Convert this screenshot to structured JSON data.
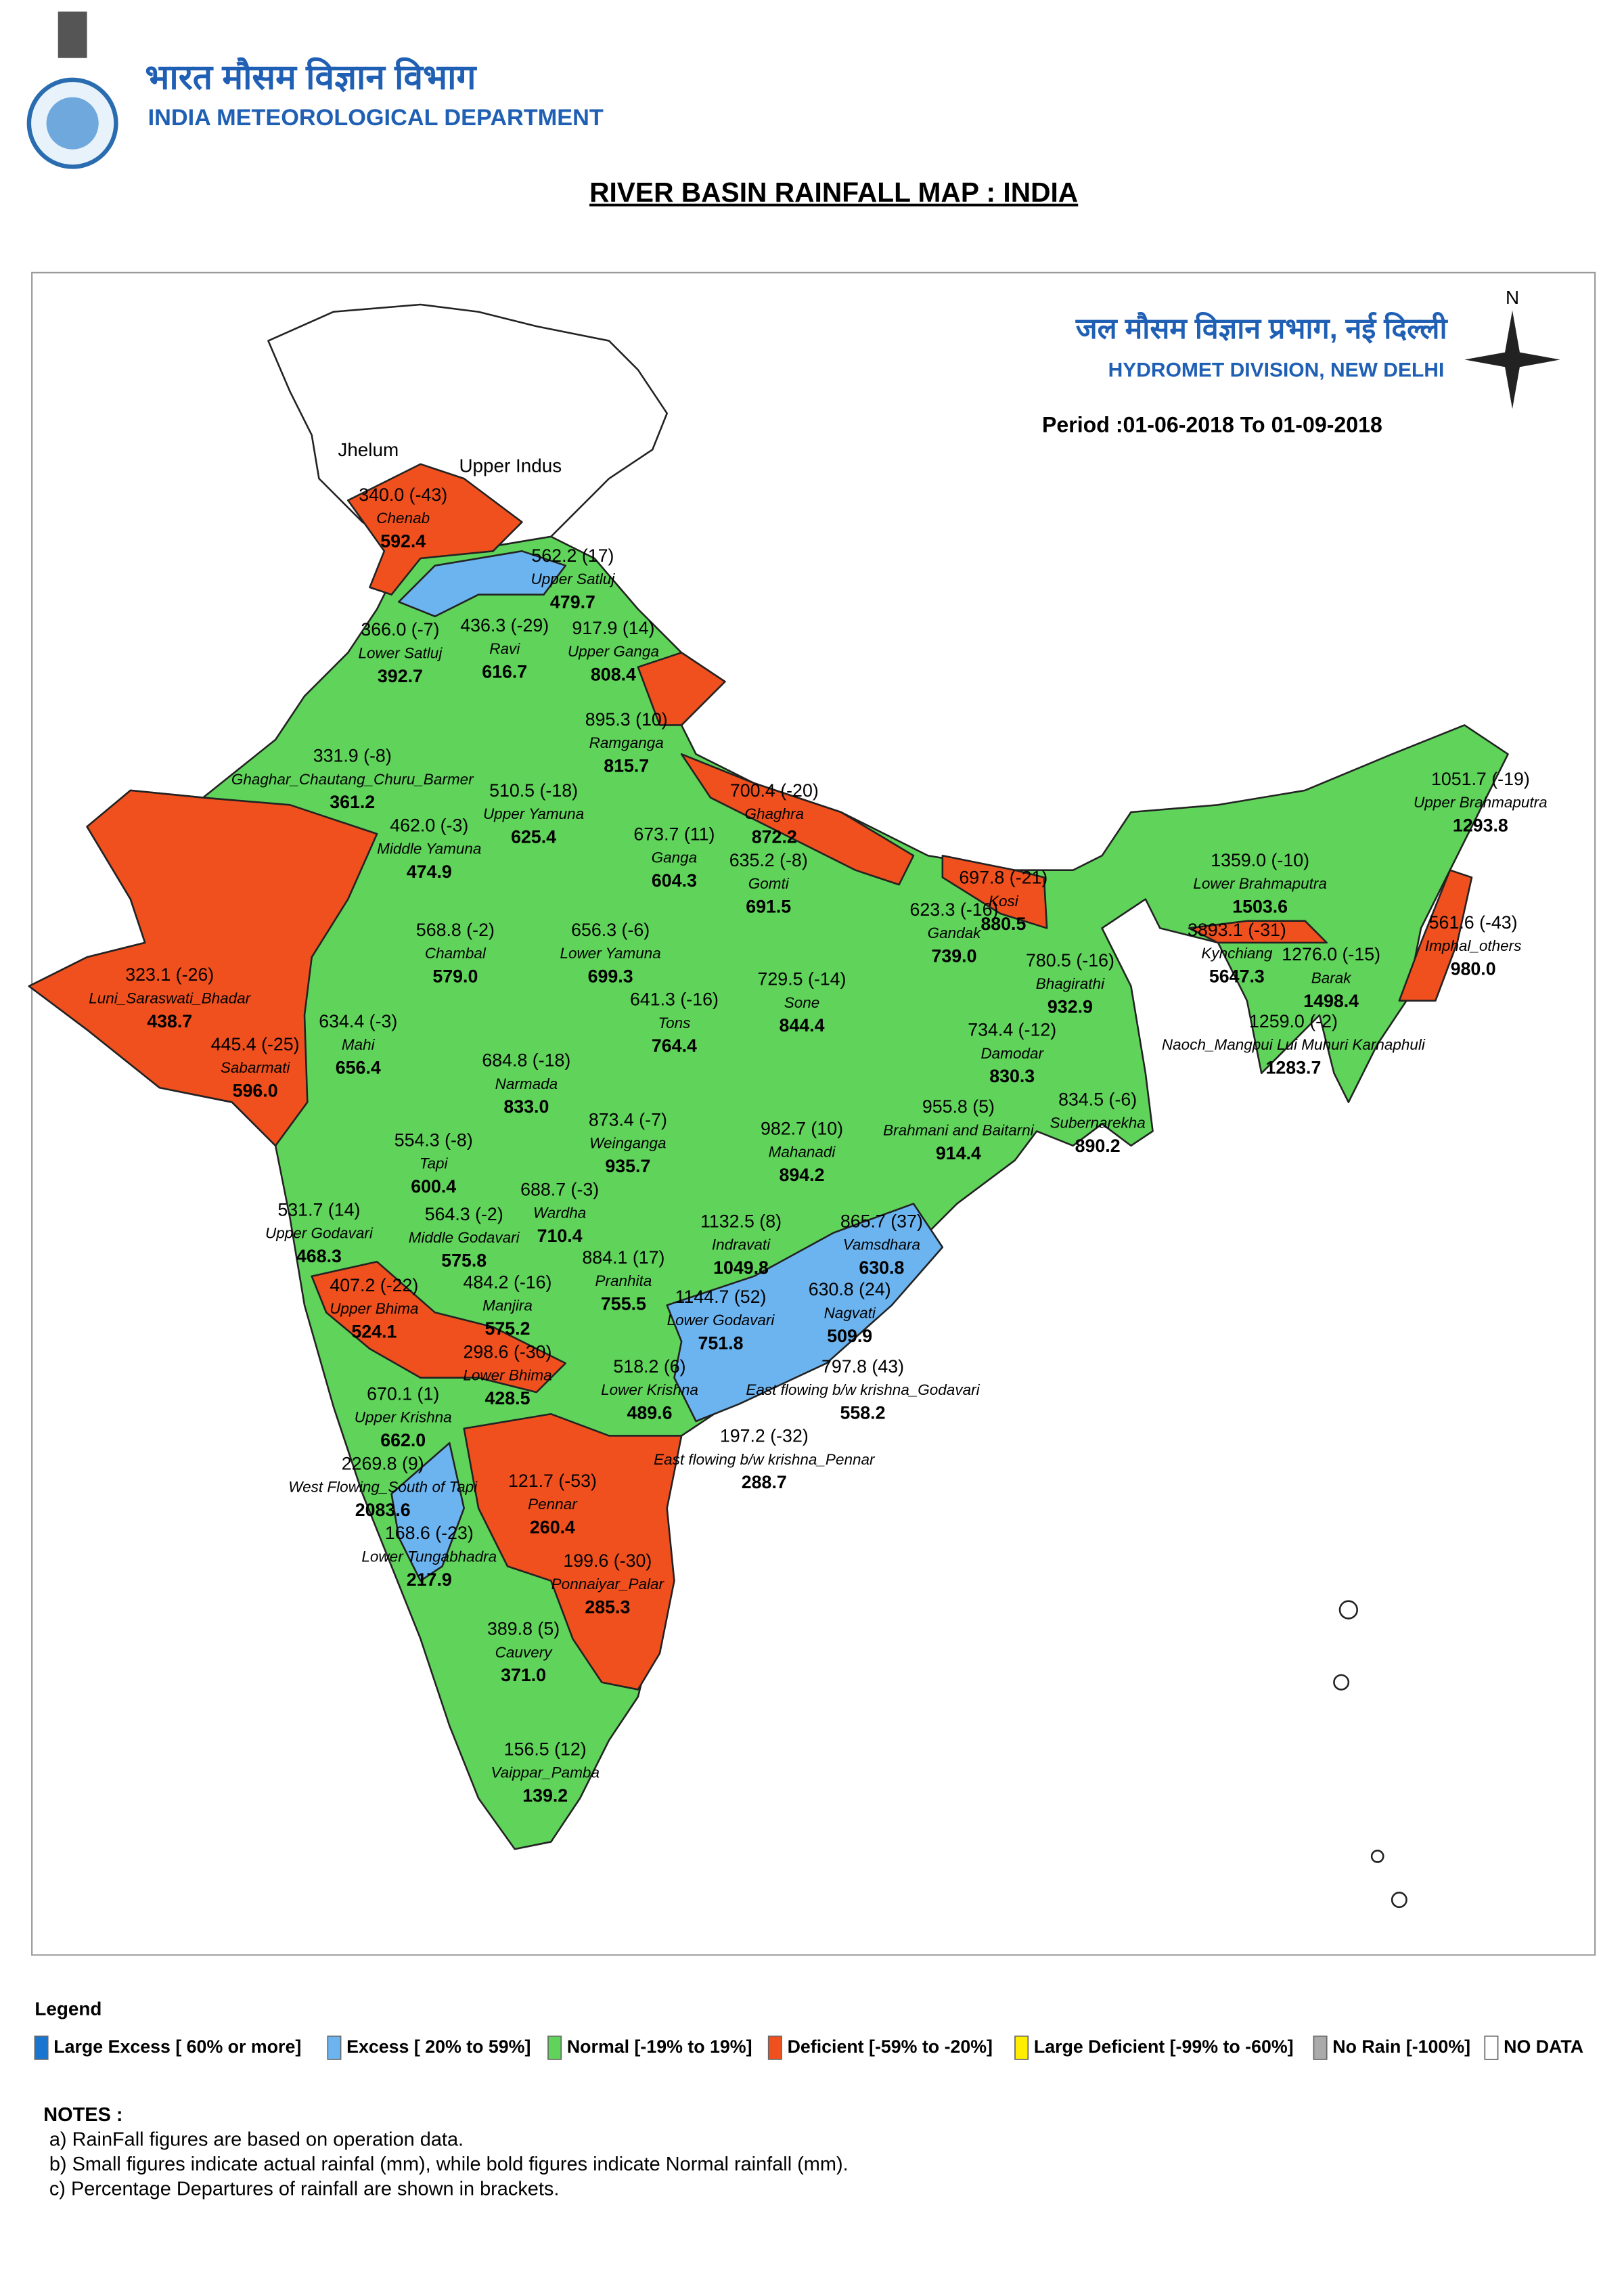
{
  "header": {
    "hindi_title": "भारत मौसम विज्ञान विभाग",
    "title": "INDIA METEOROLOGICAL DEPARTMENT"
  },
  "map": {
    "title": "RIVER BASIN RAINFALL MAP : INDIA",
    "division_hindi": "जल मौसम विज्ञान प्रभाग, नई दिल्ली",
    "division": "HYDROMET DIVISION, NEW DELHI",
    "period": "Period :01-06-2018 To 01-09-2018",
    "north": "N",
    "region_labels": [
      "Jhelum",
      "Upper Indus"
    ],
    "basins": [
      {
        "name": "Chenab",
        "actual": "340.0 (-43)",
        "normal": "592.4"
      },
      {
        "name": "Upper Satluj",
        "actual": "562.2 (17)",
        "normal": "479.7"
      },
      {
        "name": "Lower Satluj",
        "actual": "366.0 (-7)",
        "normal": "392.7"
      },
      {
        "name": "Ravi",
        "actual": "436.3 (-29)",
        "normal": "616.7"
      },
      {
        "name": "Upper Ganga",
        "actual": "917.9 (14)",
        "normal": "808.4"
      },
      {
        "name": "Ramganga",
        "actual": "895.3 (10)",
        "normal": "815.7"
      },
      {
        "name": "Ghaghar_Chautang_Churu_Barmer",
        "actual": "331.9 (-8)",
        "normal": "361.2"
      },
      {
        "name": "Upper Yamuna",
        "actual": "510.5 (-18)",
        "normal": "625.4"
      },
      {
        "name": "Middle Yamuna",
        "actual": "462.0 (-3)",
        "normal": "474.9"
      },
      {
        "name": "Ghaghra",
        "actual": "700.4 (-20)",
        "normal": "872.2"
      },
      {
        "name": "Ganga",
        "actual": "673.7 (11)",
        "normal": "604.3"
      },
      {
        "name": "Gomti",
        "actual": "635.2 (-8)",
        "normal": "691.5"
      },
      {
        "name": "Kosi",
        "actual": "697.8 (-21)",
        "normal": "880.5"
      },
      {
        "name": "Gandak",
        "actual": "623.3 (-16)",
        "normal": "739.0"
      },
      {
        "name": "Upper Brahmaputra",
        "actual": "1051.7 (-19)",
        "normal": "1293.8"
      },
      {
        "name": "Lower Brahmaputra",
        "actual": "1359.0 (-10)",
        "normal": "1503.6"
      },
      {
        "name": "Kynchiang",
        "actual": "3893.1 (-31)",
        "normal": "5647.3"
      },
      {
        "name": "Barak",
        "actual": "1276.0 (-15)",
        "normal": "1498.4"
      },
      {
        "name": "Imphal_others",
        "actual": "561.6 (-43)",
        "normal": "980.0"
      },
      {
        "name": "Naoch_Mangpui Lui Muhuri Karnaphuli",
        "actual": "1259.0 (-2)",
        "normal": "1283.7"
      },
      {
        "name": "Chambal",
        "actual": "568.8 (-2)",
        "normal": "579.0"
      },
      {
        "name": "Lower Yamuna",
        "actual": "656.3 (-6)",
        "normal": "699.3"
      },
      {
        "name": "Bhagirathi",
        "actual": "780.5 (-16)",
        "normal": "932.9"
      },
      {
        "name": "Luni_Saraswati_Bhadar",
        "actual": "323.1 (-26)",
        "normal": "438.7"
      },
      {
        "name": "Sone",
        "actual": "729.5 (-14)",
        "normal": "844.4"
      },
      {
        "name": "Tons",
        "actual": "641.3 (-16)",
        "normal": "764.4"
      },
      {
        "name": "Mahi",
        "actual": "634.4 (-3)",
        "normal": "656.4"
      },
      {
        "name": "Damodar",
        "actual": "734.4 (-12)",
        "normal": "830.3"
      },
      {
        "name": "Sabarmati",
        "actual": "445.4 (-25)",
        "normal": "596.0"
      },
      {
        "name": "Narmada",
        "actual": "684.8 (-18)",
        "normal": "833.0"
      },
      {
        "name": "Subernarekha",
        "actual": "834.5 (-6)",
        "normal": "890.2"
      },
      {
        "name": "Brahmani and Baitarni",
        "actual": "955.8 (5)",
        "normal": "914.4"
      },
      {
        "name": "Mahanadi",
        "actual": "982.7 (10)",
        "normal": "894.2"
      },
      {
        "name": "Weinganga",
        "actual": "873.4 (-7)",
        "normal": "935.7"
      },
      {
        "name": "Tapi",
        "actual": "554.3 (-8)",
        "normal": "600.4"
      },
      {
        "name": "Wardha",
        "actual": "688.7 (-3)",
        "normal": "710.4"
      },
      {
        "name": "Middle Godavari",
        "actual": "564.3 (-2)",
        "normal": "575.8"
      },
      {
        "name": "Upper Godavari",
        "actual": "531.7 (14)",
        "normal": "468.3"
      },
      {
        "name": "Indravati",
        "actual": "1132.5 (8)",
        "normal": "1049.8"
      },
      {
        "name": "Vamsdhara",
        "actual": "865.7 (37)",
        "normal": "630.8"
      },
      {
        "name": "Pranhita",
        "actual": "884.1 (17)",
        "normal": "755.5"
      },
      {
        "name": "Manjira",
        "actual": "484.2 (-16)",
        "normal": "575.2"
      },
      {
        "name": "Upper Bhima",
        "actual": "407.2 (-22)",
        "normal": "524.1"
      },
      {
        "name": "Lower Godavari",
        "actual": "1144.7 (52)",
        "normal": "751.8"
      },
      {
        "name": "Nagvati",
        "actual": "630.8 (24)",
        "normal": "509.9"
      },
      {
        "name": "Lower Bhima",
        "actual": "298.6 (-30)",
        "normal": "428.5"
      },
      {
        "name": "Lower Krishna",
        "actual": "518.2 (6)",
        "normal": "489.6"
      },
      {
        "name": "East flowing b/w krishna_Godavari",
        "actual": "797.8 (43)",
        "normal": "558.2"
      },
      {
        "name": "Upper Krishna",
        "actual": "670.1 (1)",
        "normal": "662.0"
      },
      {
        "name": "East flowing b/w krishna_Pennar",
        "actual": "197.2 (-32)",
        "normal": "288.7"
      },
      {
        "name": "West Flowing_South of Tapi",
        "actual": "2269.8 (9)",
        "normal": "2083.6"
      },
      {
        "name": "Pennar",
        "actual": "121.7 (-53)",
        "normal": "260.4"
      },
      {
        "name": "Lower Tungabhadra",
        "actual": "168.6 (-23)",
        "normal": "217.9"
      },
      {
        "name": "Ponnaiyar_Palar",
        "actual": "199.6 (-30)",
        "normal": "285.3"
      },
      {
        "name": "Cauvery",
        "actual": "389.8 (5)",
        "normal": "371.0"
      },
      {
        "name": "Vaippar_Pamba",
        "actual": "156.5 (12)",
        "normal": "139.2"
      }
    ]
  },
  "legend": {
    "title": "Legend",
    "items": [
      {
        "label": "Large Excess [ 60% or more]",
        "color": "#1a75d1"
      },
      {
        "label": "Excess [ 20% to 59%]",
        "color": "#6cb4f0"
      },
      {
        "label": "Normal [-19% to 19%]",
        "color": "#5fd35a"
      },
      {
        "label": "Deficient [-59% to -20%]",
        "color": "#f0501e"
      },
      {
        "label": "Large Deficient [-99% to -60%]",
        "color": "#ffee00"
      },
      {
        "label": "No Rain [-100%]",
        "color": "#aaaaaa"
      },
      {
        "label": "NO DATA",
        "color": "#ffffff"
      }
    ]
  },
  "notes": {
    "title": "NOTES :",
    "items": [
      "a) RainFall figures are based on operation data.",
      "b) Small figures indicate actual rainfal (mm), while bold figures indicate Normal rainfall (mm).",
      "c) Percentage Departures of rainfall are shown in brackets."
    ]
  }
}
